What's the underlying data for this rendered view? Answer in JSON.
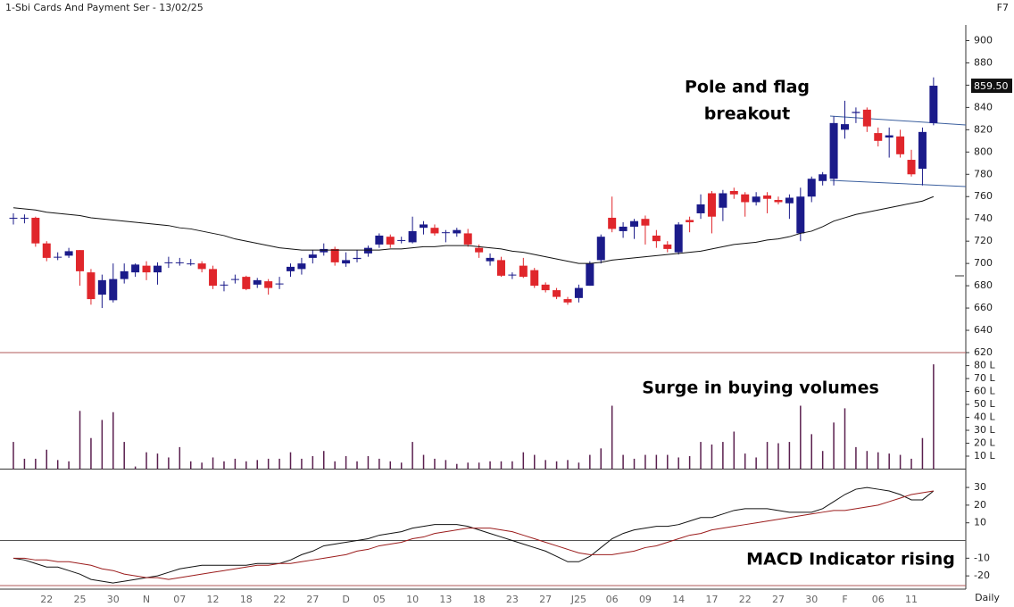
{
  "chart_data": [
    {
      "type": "candlestick",
      "title": "1-Sbi Cards And Payment Ser - 13/02/25",
      "shortcut": "F7",
      "period": "Daily",
      "annotation": [
        "Pole and flag",
        "breakout"
      ],
      "categories": [
        null,
        null,
        null,
        "22",
        null,
        null,
        "25",
        null,
        null,
        "30",
        null,
        null,
        "N",
        null,
        null,
        "07",
        null,
        null,
        "12",
        null,
        null,
        "18",
        null,
        null,
        "22",
        null,
        null,
        "27",
        null,
        null,
        "D",
        null,
        null,
        "05",
        null,
        null,
        "10",
        null,
        null,
        "13",
        null,
        null,
        "18",
        null,
        null,
        "23",
        null,
        null,
        "27",
        null,
        null,
        "J25",
        null,
        null,
        "06",
        null,
        null,
        "09",
        null,
        null,
        "14",
        null,
        null,
        "17",
        null,
        null,
        "22",
        null,
        null,
        "27",
        null,
        null,
        "30",
        null,
        null,
        "F",
        null,
        null,
        "06",
        null,
        null,
        "11",
        null,
        null
      ],
      "open": [
        741,
        741,
        741,
        718,
        706,
        707,
        712,
        692,
        672,
        667,
        686,
        692,
        698,
        692,
        701,
        701,
        700,
        700,
        695,
        681,
        686,
        688,
        681,
        684,
        682,
        693,
        695,
        705,
        710,
        713,
        700,
        704,
        709,
        717,
        724,
        721,
        719,
        732,
        732,
        728,
        727,
        727,
        714,
        702,
        703,
        690,
        698,
        694,
        681,
        676,
        668,
        669,
        680,
        703,
        741,
        729,
        733,
        740,
        725,
        717,
        710,
        739,
        745,
        763,
        750,
        765,
        762,
        755,
        761,
        757,
        754,
        727,
        760,
        774,
        776,
        820,
        835,
        838,
        817,
        813,
        814,
        793,
        785,
        826
      ],
      "high": [
        745,
        744,
        742,
        720,
        710,
        714,
        712,
        695,
        690,
        700,
        700,
        700,
        702,
        701,
        706,
        705,
        704,
        702,
        698,
        684,
        690,
        689,
        687,
        686,
        688,
        700,
        705,
        712,
        718,
        715,
        710,
        712,
        716,
        727,
        726,
        724,
        742,
        738,
        735,
        730,
        732,
        731,
        717,
        709,
        706,
        692,
        705,
        696,
        683,
        678,
        670,
        681,
        702,
        726,
        760,
        737,
        740,
        743,
        730,
        720,
        737,
        742,
        762,
        765,
        766,
        768,
        764,
        764,
        764,
        760,
        762,
        768,
        778,
        782,
        832,
        846,
        840,
        840,
        822,
        822,
        820,
        802,
        822,
        867
      ],
      "low": [
        735,
        736,
        715,
        702,
        703,
        705,
        680,
        663,
        660,
        665,
        682,
        688,
        685,
        681,
        696,
        698,
        698,
        692,
        677,
        675,
        682,
        676,
        678,
        672,
        677,
        688,
        690,
        700,
        707,
        698,
        697,
        701,
        706,
        714,
        714,
        718,
        718,
        726,
        725,
        719,
        724,
        715,
        705,
        698,
        688,
        686,
        687,
        678,
        674,
        668,
        663,
        665,
        680,
        700,
        728,
        723,
        722,
        717,
        714,
        710,
        708,
        728,
        740,
        727,
        738,
        758,
        742,
        752,
        745,
        753,
        740,
        720,
        755,
        770,
        770,
        812,
        826,
        818,
        805,
        795,
        795,
        778,
        770,
        824
      ],
      "close": [
        741,
        741,
        718,
        705,
        706,
        711,
        693,
        668,
        685,
        686,
        693,
        699,
        692,
        698,
        701,
        701,
        700,
        695,
        680,
        681,
        686,
        677,
        685,
        678,
        682,
        697,
        700,
        708,
        713,
        701,
        703,
        705,
        714,
        725,
        717,
        721,
        729,
        735,
        727,
        728,
        730,
        717,
        710,
        705,
        689,
        690,
        688,
        680,
        676,
        670,
        665,
        678,
        700,
        724,
        731,
        733,
        738,
        734,
        720,
        713,
        735,
        737,
        753,
        742,
        763,
        762,
        755,
        760,
        758,
        755,
        759,
        760,
        776,
        780,
        826,
        825,
        836,
        823,
        810,
        815,
        798,
        780,
        818,
        859.5
      ],
      "up_color": "#1b1b8a",
      "down_color": "#e0262b",
      "series": [
        {
          "color": "#111111",
          "values": [
            750,
            749,
            748,
            746,
            745,
            744,
            743,
            741,
            740,
            739,
            738,
            737,
            736,
            735,
            734,
            732,
            731,
            729,
            727,
            725,
            722,
            720,
            718,
            716,
            714,
            713,
            712,
            712,
            712,
            712,
            712,
            712,
            712,
            712,
            713,
            713,
            714,
            715,
            715,
            716,
            716,
            716,
            715,
            714,
            713,
            711,
            710,
            708,
            706,
            704,
            702,
            700,
            700,
            701,
            703,
            704,
            705,
            706,
            707,
            708,
            709,
            710,
            711,
            713,
            715,
            717,
            718,
            719,
            721,
            722,
            724,
            727,
            729,
            733,
            738,
            741,
            744,
            746,
            748,
            750,
            752,
            754,
            756,
            760
          ]
        }
      ],
      "last_price": {
        "value": 859.5,
        "label": "859.50"
      },
      "ylim": [
        620,
        914
      ],
      "yticks": [
        620,
        640,
        660,
        680,
        700,
        720,
        740,
        760,
        780,
        800,
        820,
        840,
        860,
        880,
        900
      ]
    },
    {
      "type": "bar",
      "annotation": "Surge in buying volumes",
      "color": "#5a1f4e",
      "values": [
        21,
        8,
        8,
        15,
        7,
        6,
        45,
        24,
        38,
        44,
        21,
        2,
        13,
        12,
        9,
        17,
        6,
        5,
        9,
        6,
        8,
        6,
        7,
        8,
        8,
        13,
        8,
        10,
        14,
        6,
        10,
        6,
        10,
        8,
        6,
        5,
        21,
        11,
        8,
        7,
        4,
        5,
        5,
        6,
        6,
        6,
        13,
        11,
        7,
        6,
        7,
        5,
        11,
        16,
        49,
        11,
        8,
        11,
        11,
        11,
        9,
        10,
        21,
        19,
        21,
        29,
        12,
        9,
        21,
        20,
        21,
        49,
        27,
        14,
        36,
        47,
        17,
        14,
        13,
        12,
        11,
        8,
        24,
        81
      ],
      "ylim": [
        0,
        88
      ],
      "yticks": [
        {
          "value": 10,
          "label": "10 L"
        },
        {
          "value": 20,
          "label": "20 L"
        },
        {
          "value": 30,
          "label": "30 L"
        },
        {
          "value": 40,
          "label": "40 L"
        },
        {
          "value": 50,
          "label": "50 L"
        },
        {
          "value": 60,
          "label": "60 L"
        },
        {
          "value": 70,
          "label": "70 L"
        },
        {
          "value": 80,
          "label": "80 L"
        }
      ]
    },
    {
      "type": "line",
      "annotation": "MACD Indicator rising",
      "series": [
        {
          "color": "#111111",
          "values": [
            -10,
            -11,
            -13,
            -15,
            -15,
            -17,
            -19,
            -22,
            -23,
            -24,
            -23,
            -22,
            -21,
            -20,
            -18,
            -16,
            -15,
            -14,
            -14,
            -14,
            -14,
            -14,
            -13,
            -13,
            -13,
            -11,
            -8,
            -6,
            -3,
            -2,
            -1,
            0,
            1,
            3,
            4,
            5,
            7,
            8,
            9,
            9,
            9,
            8,
            6,
            4,
            2,
            0,
            -2,
            -4,
            -6,
            -9,
            -12,
            -12,
            -9,
            -4,
            1,
            4,
            6,
            7,
            8,
            8,
            9,
            11,
            13,
            13,
            15,
            17,
            18,
            18,
            18,
            17,
            16,
            16,
            16,
            18,
            22,
            26,
            29,
            30,
            29,
            28,
            26,
            23,
            23,
            28
          ]
        },
        {
          "color": "#9b1c1c",
          "values": [
            -10,
            -10,
            -11,
            -11,
            -12,
            -12,
            -13,
            -14,
            -16,
            -17,
            -19,
            -20,
            -21,
            -21,
            -22,
            -21,
            -20,
            -19,
            -18,
            -17,
            -16,
            -15,
            -14,
            -14,
            -13,
            -13,
            -12,
            -11,
            -10,
            -9,
            -8,
            -6,
            -5,
            -3,
            -2,
            -1,
            1,
            2,
            4,
            5,
            6,
            7,
            7,
            7,
            6,
            5,
            3,
            1,
            -1,
            -3,
            -5,
            -7,
            -8,
            -8,
            -8,
            -7,
            -6,
            -4,
            -3,
            -1,
            1,
            3,
            4,
            6,
            7,
            8,
            9,
            10,
            11,
            12,
            13,
            14,
            15,
            16,
            17,
            17,
            18,
            19,
            20,
            22,
            24,
            26,
            27,
            28
          ]
        }
      ],
      "ylim": [
        -27.5,
        36.6
      ],
      "yticks": [
        30,
        20,
        10,
        -10,
        -20
      ]
    }
  ]
}
